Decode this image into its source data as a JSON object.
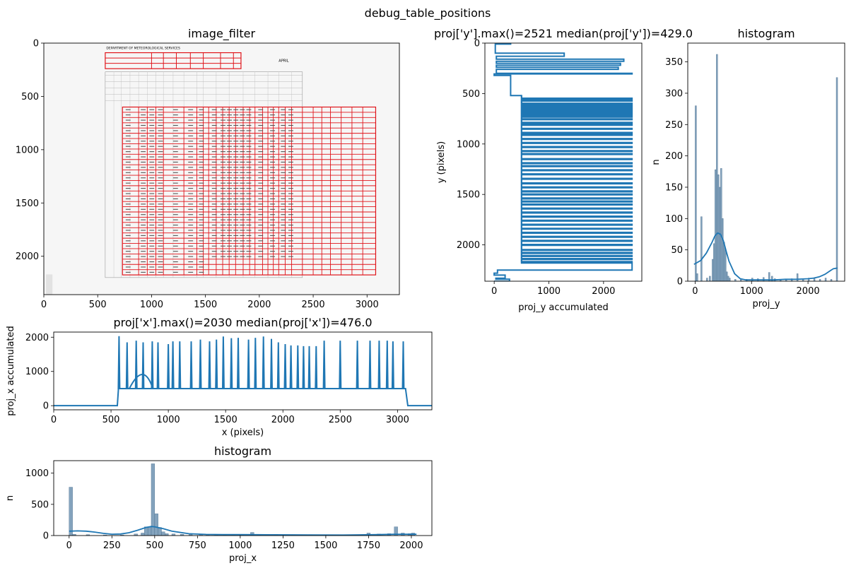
{
  "figure": {
    "suptitle": "debug_table_positions"
  },
  "colors": {
    "series": "#1f77b4",
    "hist_fill": "#6f93b2",
    "grid_red": "#e0151b",
    "frame": "#000000"
  },
  "chart_data": [
    {
      "id": "image_filter",
      "type": "image",
      "title": "image_filter",
      "xlabel": "",
      "ylabel": "",
      "xlim": [
        0,
        3300
      ],
      "ylim": [
        2360,
        0
      ],
      "xticks": [
        0,
        500,
        1000,
        1500,
        2000,
        2500,
        3000
      ],
      "yticks": [
        0,
        500,
        1000,
        1500,
        2000
      ],
      "tick_labels_x": [
        "0",
        "500",
        "1000",
        "1500",
        "2000",
        "2500",
        "3000"
      ],
      "tick_labels_y": [
        "0",
        "500",
        "1000",
        "1500",
        "2000"
      ],
      "doc_heading": "DEPARTMENT OF METEOROLOGICAL SERVICES",
      "doc_month": "APRIL",
      "header_box": {
        "x0": 570,
        "x1": 1830,
        "y0": 90,
        "y1": 240,
        "rows": 3,
        "col_lines": [
          1000,
          1110,
          1230,
          1360,
          1480,
          1640,
          1760
        ]
      },
      "table_grid": {
        "x0": 730,
        "x1": 3080,
        "y0": 600,
        "y1": 2175,
        "rows": 32,
        "col_lines": [
          880,
          960,
          1040,
          1110,
          1300,
          1420,
          1480,
          1530,
          1600,
          1660,
          1720,
          1780,
          1850,
          1910,
          1960,
          2030,
          2080,
          2130,
          2180,
          2240,
          2300,
          2400,
          2500,
          2580,
          2660,
          2760,
          2860,
          2960
        ]
      }
    },
    {
      "id": "proj_y",
      "type": "line",
      "title": "proj['y'].max()=2521 median(proj['y'])=429.0",
      "xlabel": "proj_y accumulated",
      "ylabel": "y (pixels)",
      "xlim": [
        -170,
        2700
      ],
      "ylim": [
        2360,
        0
      ],
      "xticks": [
        0,
        1000,
        2000
      ],
      "yticks": [
        0,
        500,
        1000,
        1500,
        2000
      ],
      "tick_labels_x": [
        "0",
        "1000",
        "2000"
      ],
      "tick_labels_y": [
        "0",
        "500",
        "1000",
        "1500",
        "2000"
      ],
      "baseline": 500,
      "spike_value": 2521,
      "spike_y": [
        550,
        570,
        600,
        615,
        630,
        650,
        670,
        690,
        710,
        730,
        755,
        790,
        810,
        850,
        890,
        910,
        950,
        990,
        1030,
        1070,
        1100,
        1150,
        1190,
        1220,
        1260,
        1300,
        1345,
        1390,
        1430,
        1470,
        1500,
        1540,
        1570,
        1600,
        1640,
        1680,
        1720,
        1760,
        1800,
        1840,
        1880,
        1920,
        1960,
        2000,
        2050,
        2080,
        2110,
        2140,
        2170
      ],
      "top_segment": {
        "y": [
          0,
          10,
          30,
          50,
          70,
          90,
          100,
          130,
          140,
          160,
          180,
          200,
          220,
          240,
          260,
          280,
          300,
          305,
          320,
          500,
          520,
          2160,
          2180,
          2250,
          2280,
          2300,
          2330,
          2340,
          2360
        ],
        "x": [
          300,
          20,
          20,
          20,
          20,
          20,
          1280,
          40,
          40,
          2370,
          40,
          2310,
          40,
          2270,
          40,
          40,
          2521,
          0,
          300,
          300,
          500,
          500,
          2521,
          60,
          0,
          200,
          30,
          280,
          0
        ]
      }
    },
    {
      "id": "hist_y",
      "type": "bar",
      "title": "histogram",
      "xlabel": "proj_y",
      "ylabel": "n",
      "xlim": [
        -130,
        2650
      ],
      "ylim": [
        0,
        380
      ],
      "xticks": [
        0,
        1000,
        2000
      ],
      "yticks": [
        0,
        50,
        100,
        150,
        200,
        250,
        300,
        350
      ],
      "tick_labels_x": [
        "0",
        "1000",
        "2000"
      ],
      "tick_labels_y": [
        "0",
        "50",
        "100",
        "150",
        "200",
        "250",
        "300",
        "350"
      ],
      "bin_width": 25,
      "bins": [
        [
          0,
          280
        ],
        [
          25,
          12
        ],
        [
          100,
          103
        ],
        [
          200,
          5
        ],
        [
          250,
          8
        ],
        [
          300,
          35
        ],
        [
          325,
          60
        ],
        [
          350,
          178
        ],
        [
          375,
          362
        ],
        [
          400,
          170
        ],
        [
          425,
          150
        ],
        [
          450,
          180
        ],
        [
          475,
          100
        ],
        [
          500,
          62
        ],
        [
          525,
          50
        ],
        [
          550,
          15
        ],
        [
          575,
          8
        ],
        [
          600,
          5
        ],
        [
          700,
          3
        ],
        [
          800,
          4
        ],
        [
          900,
          3
        ],
        [
          1000,
          5
        ],
        [
          1100,
          4
        ],
        [
          1200,
          6
        ],
        [
          1300,
          14
        ],
        [
          1350,
          8
        ],
        [
          1400,
          4
        ],
        [
          1500,
          3
        ],
        [
          1600,
          3
        ],
        [
          1700,
          4
        ],
        [
          1800,
          12
        ],
        [
          1900,
          3
        ],
        [
          2000,
          5
        ],
        [
          2100,
          4
        ],
        [
          2200,
          3
        ],
        [
          2300,
          5
        ],
        [
          2400,
          3
        ],
        [
          2500,
          325
        ]
      ],
      "kde": {
        "x": [
          -20,
          100,
          200,
          300,
          350,
          400,
          450,
          500,
          550,
          600,
          700,
          800,
          900,
          1000,
          1200,
          1400,
          1600,
          1800,
          2000,
          2100,
          2200,
          2300,
          2400,
          2450,
          2521
        ],
        "y": [
          27,
          33,
          45,
          62,
          72,
          77,
          75,
          65,
          48,
          32,
          12,
          4,
          2,
          2,
          2,
          2,
          3,
          3,
          4,
          5,
          7,
          11,
          17,
          20,
          21
        ]
      }
    },
    {
      "id": "proj_x",
      "type": "line",
      "title": "proj['x'].max()=2030 median(proj['x'])=476.0",
      "xlabel": "x (pixels)",
      "ylabel": "proj_x accumulated",
      "xlim": [
        0,
        3300
      ],
      "ylim": [
        -120,
        2150
      ],
      "xticks": [
        0,
        500,
        1000,
        1500,
        2000,
        2500,
        3000
      ],
      "yticks": [
        0,
        1000,
        2000
      ],
      "tick_labels_x": [
        "0",
        "500",
        "1000",
        "1500",
        "2000",
        "2500",
        "3000"
      ],
      "tick_labels_y": [
        "0",
        "1000",
        "2000"
      ],
      "baseline": 500,
      "spikes": [
        [
          570,
          2030
        ],
        [
          640,
          1850
        ],
        [
          720,
          1900
        ],
        [
          780,
          1850
        ],
        [
          860,
          1880
        ],
        [
          910,
          1850
        ],
        [
          1000,
          1800
        ],
        [
          1040,
          1880
        ],
        [
          1100,
          1880
        ],
        [
          1200,
          1880
        ],
        [
          1280,
          1930
        ],
        [
          1360,
          1880
        ],
        [
          1420,
          1930
        ],
        [
          1480,
          2020
        ],
        [
          1550,
          1970
        ],
        [
          1610,
          1980
        ],
        [
          1700,
          1930
        ],
        [
          1760,
          1980
        ],
        [
          1830,
          2020
        ],
        [
          1900,
          1950
        ],
        [
          1960,
          1850
        ],
        [
          2020,
          1800
        ],
        [
          2070,
          1760
        ],
        [
          2130,
          1760
        ],
        [
          2180,
          1740
        ],
        [
          2230,
          1740
        ],
        [
          2290,
          1740
        ],
        [
          2360,
          1900
        ],
        [
          2500,
          1900
        ],
        [
          2650,
          1900
        ],
        [
          2760,
          1900
        ],
        [
          2840,
          1900
        ],
        [
          2910,
          1900
        ],
        [
          2960,
          1880
        ],
        [
          3050,
          1880
        ]
      ]
    },
    {
      "id": "hist_x",
      "type": "bar",
      "title": "histogram",
      "xlabel": "proj_x",
      "ylabel": "n",
      "xlim": [
        -90,
        2120
      ],
      "ylim": [
        0,
        1200
      ],
      "xticks": [
        0,
        250,
        500,
        750,
        1000,
        1250,
        1500,
        1750,
        2000
      ],
      "yticks": [
        0,
        500,
        1000
      ],
      "tick_labels_x": [
        "0",
        "250",
        "500",
        "750",
        "1000",
        "1250",
        "1500",
        "1750",
        "2000"
      ],
      "tick_labels_y": [
        "0",
        "500",
        "1000"
      ],
      "bin_width": 20,
      "bins": [
        [
          0,
          775
        ],
        [
          20,
          20
        ],
        [
          100,
          15
        ],
        [
          200,
          10
        ],
        [
          300,
          10
        ],
        [
          380,
          25
        ],
        [
          420,
          40
        ],
        [
          440,
          140
        ],
        [
          460,
          140
        ],
        [
          480,
          1150
        ],
        [
          500,
          350
        ],
        [
          520,
          130
        ],
        [
          540,
          60
        ],
        [
          560,
          30
        ],
        [
          600,
          25
        ],
        [
          650,
          20
        ],
        [
          700,
          15
        ],
        [
          760,
          15
        ],
        [
          800,
          12
        ],
        [
          850,
          15
        ],
        [
          900,
          12
        ],
        [
          950,
          15
        ],
        [
          1000,
          15
        ],
        [
          1060,
          50
        ],
        [
          1100,
          15
        ],
        [
          1200,
          20
        ],
        [
          1300,
          15
        ],
        [
          1400,
          15
        ],
        [
          1500,
          12
        ],
        [
          1600,
          12
        ],
        [
          1700,
          15
        ],
        [
          1740,
          40
        ],
        [
          1800,
          25
        ],
        [
          1860,
          30
        ],
        [
          1900,
          140
        ],
        [
          1940,
          40
        ],
        [
          1980,
          30
        ],
        [
          2000,
          40
        ]
      ],
      "kde": {
        "x": [
          0,
          50,
          100,
          150,
          200,
          250,
          300,
          350,
          400,
          450,
          480,
          500,
          550,
          600,
          700,
          800,
          900,
          1000,
          1100,
          1200,
          1400,
          1600,
          1800,
          1900,
          2000,
          2030
        ],
        "y": [
          70,
          75,
          70,
          55,
          35,
          22,
          25,
          45,
          85,
          130,
          145,
          140,
          110,
          70,
          30,
          18,
          15,
          15,
          14,
          12,
          10,
          8,
          15,
          20,
          22,
          20
        ]
      }
    }
  ]
}
